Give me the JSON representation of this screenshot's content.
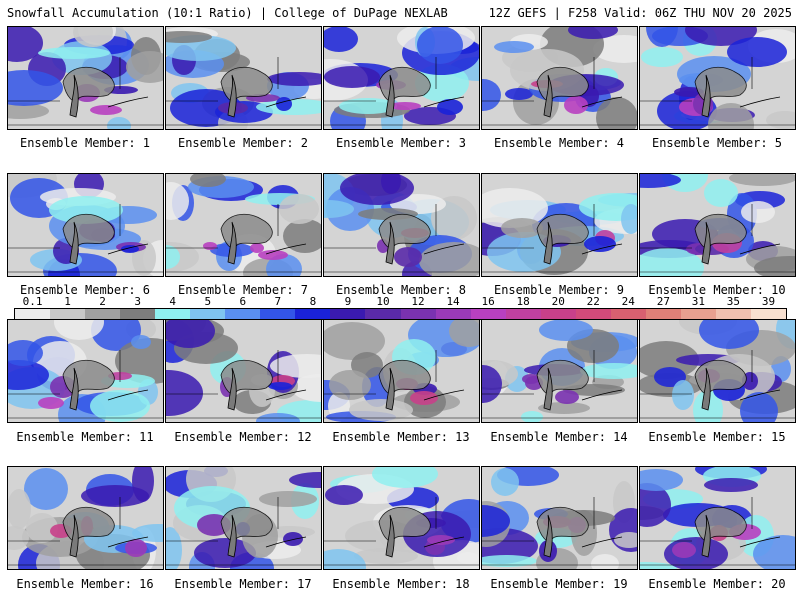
{
  "header": {
    "title_left": "Snowfall Accumulation (10:1 Ratio) | College of DuPage NEXLAB",
    "title_right": "12Z GEFS | F258 Valid: 06Z THU NOV 20 2025"
  },
  "members": [
    {
      "label": "Ensemble Member: 1"
    },
    {
      "label": "Ensemble Member: 2"
    },
    {
      "label": "Ensemble Member: 3"
    },
    {
      "label": "Ensemble Member: 4"
    },
    {
      "label": "Ensemble Member: 5"
    },
    {
      "label": "Ensemble Member: 6"
    },
    {
      "label": "Ensemble Member: 7"
    },
    {
      "label": "Ensemble Member: 8"
    },
    {
      "label": "Ensemble Member: 9"
    },
    {
      "label": "Ensemble Member: 10"
    },
    {
      "label": "Ensemble Member: 11"
    },
    {
      "label": "Ensemble Member: 12"
    },
    {
      "label": "Ensemble Member: 13"
    },
    {
      "label": "Ensemble Member: 14"
    },
    {
      "label": "Ensemble Member: 15"
    },
    {
      "label": "Ensemble Member: 16"
    },
    {
      "label": "Ensemble Member: 17"
    },
    {
      "label": "Ensemble Member: 18"
    },
    {
      "label": "Ensemble Member: 19"
    },
    {
      "label": "Ensemble Member: 20"
    }
  ],
  "colorbar": {
    "ticks": [
      "0.1",
      "1",
      "2",
      "3",
      "4",
      "5",
      "6",
      "7",
      "8",
      "9",
      "10",
      "12",
      "14",
      "16",
      "18",
      "20",
      "22",
      "24",
      "27",
      "31",
      "35",
      "39"
    ],
    "colors": [
      "#ececec",
      "#c8c8c8",
      "#a0a0a0",
      "#7d7d7d",
      "#8ff0f0",
      "#7fc4f0",
      "#5a8ff0",
      "#3355e8",
      "#1a22d8",
      "#3a1ab0",
      "#5a2aa8",
      "#7a32b0",
      "#9a3ab8",
      "#b840c0",
      "#c040a0",
      "#c8408a",
      "#d24a7a",
      "#d86070",
      "#e08078",
      "#e8a090",
      "#f0c0b0",
      "#f8e0d0"
    ]
  }
}
